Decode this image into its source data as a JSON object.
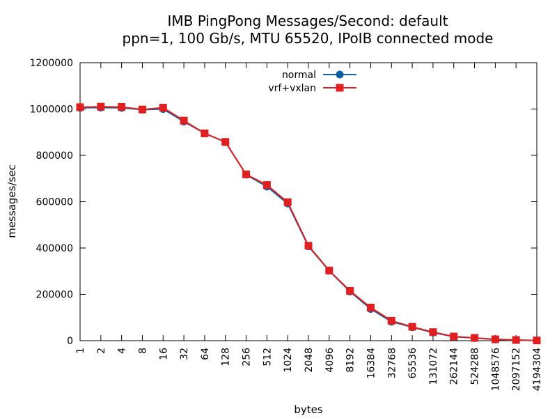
{
  "chart_data": {
    "type": "line",
    "title": "IMB PingPong Messages/Second: default",
    "subtitle": "ppn=1, 100 Gb/s, MTU 65520, IPoIB connected mode",
    "xlabel": "bytes",
    "ylabel": "messages/sec",
    "categories": [
      "1",
      "2",
      "4",
      "8",
      "16",
      "32",
      "64",
      "128",
      "256",
      "512",
      "1024",
      "2048",
      "4096",
      "8192",
      "16384",
      "32768",
      "65536",
      "131072",
      "262144",
      "524288",
      "1048576",
      "2097152",
      "4194304"
    ],
    "ylim": [
      0,
      1200000
    ],
    "yticks": [
      0,
      200000,
      400000,
      600000,
      800000,
      1000000,
      1200000
    ],
    "ytick_labels": [
      "0",
      "200000",
      "400000",
      "600000",
      "800000",
      "1000000",
      "1200000"
    ],
    "legend_position": "top-center",
    "grid": false,
    "series": [
      {
        "name": "normal",
        "color": "#0a5fa8",
        "marker": "circle",
        "values": [
          1005000,
          1006000,
          1005000,
          997000,
          1000000,
          946000,
          895000,
          857000,
          717000,
          665000,
          592000,
          407000,
          302000,
          212000,
          137000,
          82000,
          58000,
          35000,
          17000,
          11000,
          5000,
          2500,
          1000
        ]
      },
      {
        "name": "vrf+vxlan",
        "color": "#e02020",
        "marker": "square",
        "values": [
          1008000,
          1010000,
          1009000,
          998000,
          1006000,
          950000,
          895000,
          858000,
          718000,
          672000,
          598000,
          410000,
          303000,
          215000,
          143000,
          86000,
          60000,
          37000,
          18000,
          12000,
          6000,
          3000,
          1000
        ]
      }
    ]
  }
}
